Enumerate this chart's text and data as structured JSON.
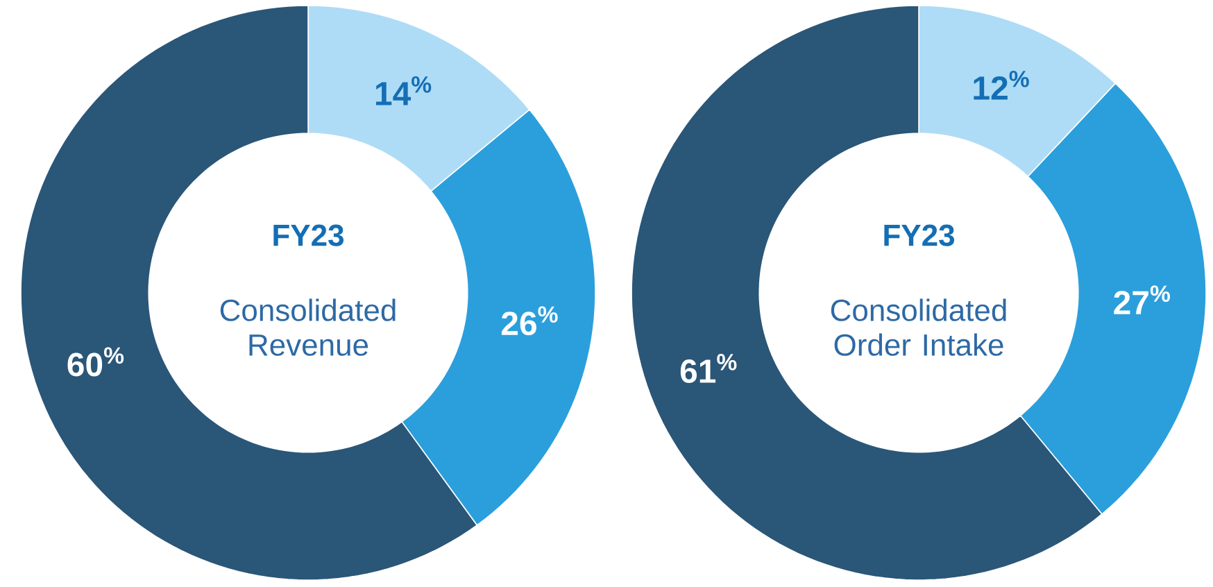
{
  "chart_data": [
    {
      "type": "donut",
      "title": "FY23",
      "subtitle": "Consolidated Revenue",
      "categories": [
        null,
        null,
        null
      ],
      "values": [
        14,
        26,
        60
      ],
      "colors": [
        "#aedcf6",
        "#2b9fdc",
        "#2a5678"
      ],
      "value_labels": [
        "14$^{%}$",
        "26$^{%}$",
        "60$^{%}$"
      ]
    },
    {
      "type": "donut",
      "title": "FY23",
      "subtitle": "Consolidated Order Intake",
      "categories": [
        null,
        null,
        null
      ],
      "values": [
        12,
        27,
        61
      ],
      "colors": [
        "#aedcf6",
        "#2b9fdc",
        "#2a5678"
      ],
      "value_labels": [
        "12$^{%}$",
        "27$^{%}$",
        "61$^{%}$"
      ]
    }
  ]
}
